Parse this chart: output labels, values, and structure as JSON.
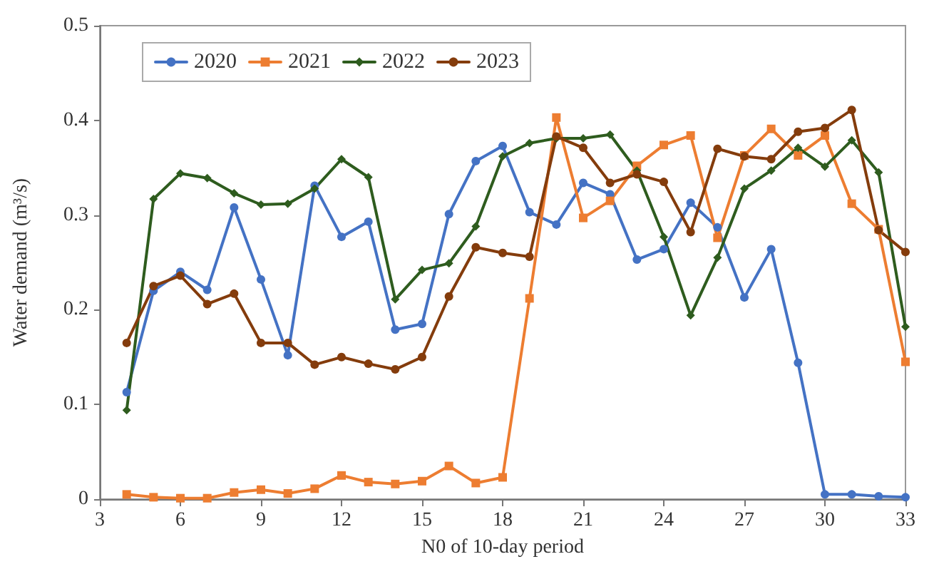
{
  "chart_data": {
    "type": "line",
    "xlabel": "N0 of 10-day period",
    "ylabel": "Water demand (m³/s)",
    "x": [
      4,
      5,
      6,
      7,
      8,
      9,
      10,
      11,
      12,
      13,
      14,
      15,
      16,
      17,
      18,
      19,
      20,
      21,
      22,
      23,
      24,
      25,
      26,
      27,
      28,
      29,
      30,
      31,
      32,
      33
    ],
    "series": [
      {
        "name": "2020",
        "color": "#4472c4",
        "marker": "circle",
        "values": [
          0.113,
          0.22,
          0.24,
          0.221,
          0.308,
          0.232,
          0.152,
          0.331,
          0.277,
          0.293,
          0.179,
          0.185,
          0.301,
          0.357,
          0.373,
          0.303,
          0.29,
          0.334,
          0.322,
          0.253,
          0.264,
          0.313,
          0.287,
          0.213,
          0.264,
          0.144,
          0.005,
          0.005,
          0.003,
          0.002
        ]
      },
      {
        "name": "2021",
        "color": "#ed7d31",
        "marker": "square",
        "values": [
          0.005,
          0.002,
          0.001,
          0.001,
          0.007,
          0.01,
          0.006,
          0.011,
          0.025,
          0.018,
          0.016,
          0.019,
          0.035,
          0.017,
          0.023,
          0.212,
          0.403,
          0.297,
          0.315,
          0.352,
          0.374,
          0.384,
          0.276,
          0.363,
          0.391,
          0.363,
          0.384,
          0.312,
          0.285,
          0.145
        ]
      },
      {
        "name": "2022",
        "color": "#2e5c1e",
        "marker": "diamond",
        "values": [
          0.094,
          0.317,
          0.344,
          0.339,
          0.323,
          0.311,
          0.312,
          0.328,
          0.359,
          0.34,
          0.211,
          0.242,
          0.249,
          0.288,
          0.362,
          0.376,
          0.381,
          0.381,
          0.385,
          0.347,
          0.277,
          0.194,
          0.255,
          0.328,
          0.347,
          0.371,
          0.351,
          0.379,
          0.345,
          0.182
        ]
      },
      {
        "name": "2023",
        "color": "#843c0c",
        "marker": "circle",
        "values": [
          0.165,
          0.225,
          0.236,
          0.206,
          0.217,
          0.165,
          0.165,
          0.142,
          0.15,
          0.143,
          0.137,
          0.15,
          0.214,
          0.266,
          0.26,
          0.256,
          0.383,
          0.371,
          0.334,
          0.343,
          0.335,
          0.282,
          0.37,
          0.362,
          0.359,
          0.388,
          0.392,
          0.411,
          0.284,
          0.261
        ]
      }
    ],
    "xlim": [
      3,
      33
    ],
    "xticks": [
      3,
      6,
      9,
      12,
      15,
      18,
      21,
      24,
      27,
      30,
      33
    ],
    "ylim": [
      0,
      0.5
    ],
    "yticks": [
      0,
      0.1,
      0.2,
      0.3,
      0.4,
      0.5
    ],
    "grid": false,
    "legend": "top left",
    "line_style": "solid"
  }
}
